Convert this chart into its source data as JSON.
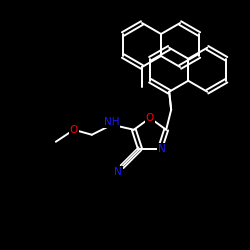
{
  "background_color": "#000000",
  "bond_color": "#ffffff",
  "atom_colors": {
    "N": "#1a1aff",
    "O": "#ff0000",
    "C": "#ffffff",
    "H": "#ffffff"
  },
  "figsize": [
    2.5,
    2.5
  ],
  "dpi": 100
}
